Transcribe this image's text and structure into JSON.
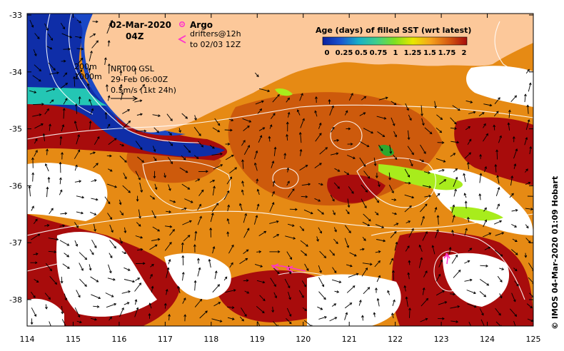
{
  "map": {
    "date": "02-Mar-2020",
    "hour": "04Z",
    "argo_label": "Argo",
    "drifters_label": "drifters@12h",
    "drifters_until": "to 02/03 12Z",
    "depth_200": "200m",
    "depth_1000": "1000m",
    "altimetry_product": "NRT00 GSL",
    "altimetry_time": "29-Feb 06:00Z",
    "vector_scale": "0.5m/s (1kt 24h)",
    "credit": "© IMOS 04-Mar-2020 01:09 Hobart",
    "x_ticks": [
      "114",
      "115",
      "116",
      "117",
      "118",
      "119",
      "120",
      "121",
      "122",
      "123",
      "124",
      "125"
    ],
    "y_ticks": [
      "-33",
      "-34",
      "-35",
      "-36",
      "-37",
      "-38"
    ]
  },
  "legend": {
    "title": "Age (days) of filled SST (wrt latest)",
    "ticks": [
      "0",
      "0.25",
      "0.5",
      "0.75",
      "1",
      "1.25",
      "1.5",
      "1.75",
      "2"
    ],
    "colors": [
      "#0a1f9e",
      "#1a55d0",
      "#18b0c8",
      "#3fcf8a",
      "#7fe020",
      "#e8e800",
      "#f6a21c",
      "#d65a10",
      "#a80c0c"
    ]
  },
  "colors": {
    "land": "#fcc89a",
    "blue_deep": "#0f2ea8",
    "blue_mid": "#1a48c6",
    "teal": "#24c6b4",
    "dark_red": "#a80c0c",
    "burnt": "#cd5a0c",
    "orange": "#e68a14",
    "amber": "#f09a18",
    "lime": "#a8ec1c",
    "green": "#2ea82e",
    "drifter": "#ff33cc",
    "contour": "#ffffff",
    "arrow": "#000000"
  },
  "icons": {
    "argo": "argo-float-icon",
    "drifter": "drifter-chevron-icon",
    "scale_arrow": "scale-arrow-icon"
  }
}
